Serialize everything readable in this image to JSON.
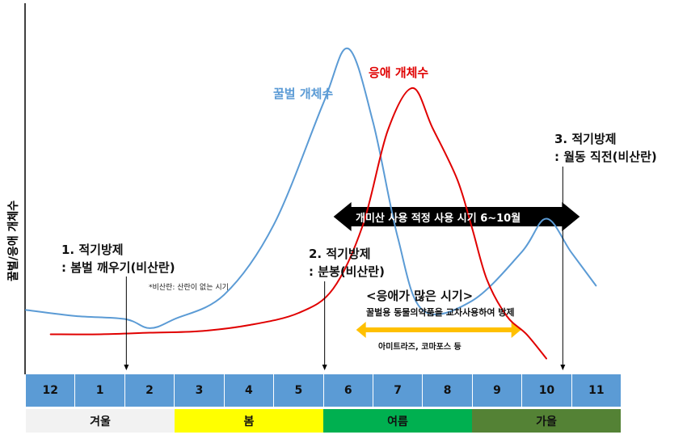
{
  "y_axis_label": "꿀벌/응애 개체수",
  "series_labels": {
    "bee": "꿀벌 개체수",
    "mite": "응애 개체수"
  },
  "colors": {
    "bee": "#5b9bd5",
    "mite": "#e00000",
    "month_bar": "#5b9bd5",
    "winter": "#f2f2f2",
    "spring": "#ffff00",
    "summer": "#00b050",
    "autumn": "#548235",
    "black_arrow": "#000000",
    "yellow_arrow": "#ffc000"
  },
  "steps": {
    "s1_line1": "1. 적기방제",
    "s1_line2": ": 봄벌 깨우기(비산란)",
    "s1_note": "*비산란: 산란이 없는 시기",
    "s2_line1": "2. 적기방제",
    "s2_line2": ": 분봉(비산란)",
    "s3_line1": "3. 적기방제",
    "s3_line2": ": 월동 직전(비산란)"
  },
  "arrows": {
    "black_label": "개미산 사용 적정 사용 시기 6~10월",
    "yellow_label": "아미트라즈, 코마포스 등"
  },
  "mite_period": {
    "title": "<응애가 많은 시기>",
    "subtitle": "꿀벌용 동물의약품을 교차사용하여 방제"
  },
  "chart_data": {
    "type": "line",
    "title": "",
    "ylabel": "꿀벌/응애 개체수",
    "xlabel": "",
    "categories": [
      "12",
      "1",
      "2",
      "3",
      "4",
      "5",
      "6",
      "7",
      "8",
      "9",
      "10",
      "11"
    ],
    "seasons": [
      {
        "name": "겨울",
        "months": [
          "12",
          "1",
          "2"
        ]
      },
      {
        "name": "봄",
        "months": [
          "3",
          "4",
          "5"
        ]
      },
      {
        "name": "여름",
        "months": [
          "6",
          "7",
          "8"
        ]
      },
      {
        "name": "가을",
        "months": [
          "9",
          "10",
          "11"
        ]
      }
    ],
    "y_scale": "relative, 0-100, no numeric ticks",
    "series": [
      {
        "name": "꿀벌 개체수",
        "color": "#5b9bd5",
        "points": [
          [
            -0.5,
            14
          ],
          [
            0.5,
            12
          ],
          [
            1.5,
            11
          ],
          [
            2.0,
            8
          ],
          [
            2.5,
            11
          ],
          [
            3.5,
            19
          ],
          [
            4.5,
            42
          ],
          [
            5.5,
            82
          ],
          [
            6.0,
            100
          ],
          [
            6.5,
            76
          ],
          [
            7.0,
            38
          ],
          [
            7.5,
            14
          ],
          [
            8.5,
            17
          ],
          [
            9.5,
            33
          ],
          [
            10.0,
            44
          ],
          [
            10.5,
            33
          ],
          [
            11.0,
            22
          ]
        ]
      },
      {
        "name": "응애 개체수",
        "color": "#e00000",
        "points": [
          [
            0.0,
            6
          ],
          [
            1.0,
            6
          ],
          [
            2.0,
            6.5
          ],
          [
            3.0,
            7
          ],
          [
            4.0,
            9
          ],
          [
            5.0,
            13
          ],
          [
            5.7,
            21
          ],
          [
            6.3,
            42
          ],
          [
            6.8,
            73
          ],
          [
            7.3,
            87
          ],
          [
            7.7,
            74
          ],
          [
            8.2,
            57
          ],
          [
            8.5,
            41
          ],
          [
            8.8,
            24
          ],
          [
            9.2,
            12
          ],
          [
            9.6,
            6
          ],
          [
            10.0,
            -2
          ]
        ]
      }
    ],
    "markers": [
      {
        "label": "1. 적기방제 : 봄벌 깨우기(비산란)",
        "month": "2"
      },
      {
        "label": "2. 적기방제 : 분봉(비산란)",
        "month": "6"
      },
      {
        "label": "3. 적기방제 : 월동 직전(비산란)",
        "month": "11"
      }
    ],
    "ranges": [
      {
        "label": "개미산 사용 적정 사용 시기 6~10월",
        "from": "6",
        "to": "11",
        "style": "black double arrow"
      },
      {
        "label": "아미트라즈, 코마포스 등",
        "from": "6.5",
        "to": "9.5",
        "style": "yellow double arrow"
      }
    ],
    "grid": false,
    "legend": "none (series labelled inline)"
  }
}
